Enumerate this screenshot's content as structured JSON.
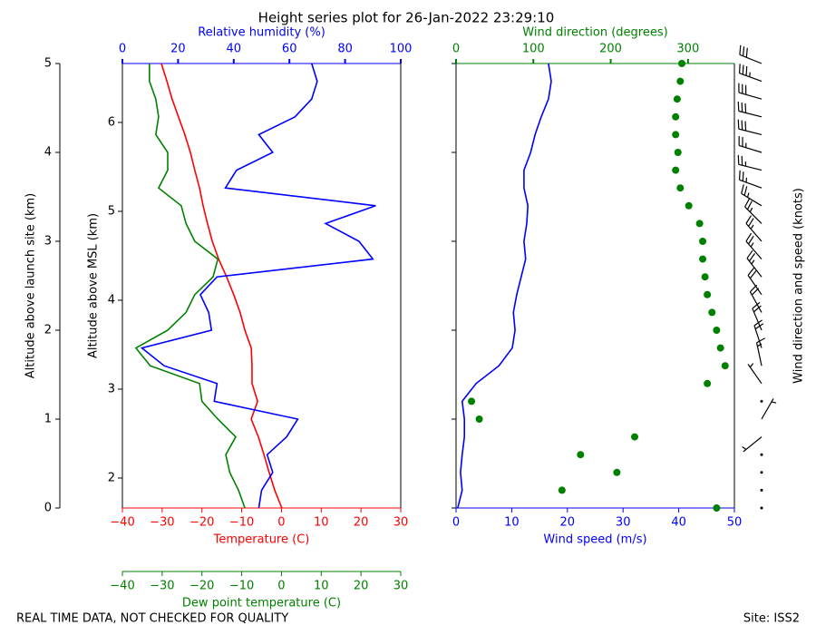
{
  "title": "Height series plot for 26-Jan-2022 23:29:10",
  "footer": "REAL TIME DATA, NOT CHECKED FOR QUALITY",
  "site": "Site: ISS2",
  "chart_data": [
    {
      "type": "line",
      "y": [
        0,
        0.2,
        0.4,
        0.6,
        0.8,
        1,
        1.2,
        1.4,
        1.6,
        1.8,
        2,
        2.2,
        2.4,
        2.6,
        2.8,
        3,
        3.2,
        3.4,
        3.6,
        3.8,
        4,
        4.2,
        4.4,
        4.6,
        4.8,
        5
      ],
      "ylabel": "Altitude above launch site (km)",
      "ylim": [
        0,
        5
      ],
      "yticks": [
        0,
        1,
        2,
        3,
        4,
        5
      ],
      "y2label": "Altitude above MSL (km)",
      "y2lim": [
        1.663,
        6.663
      ],
      "y2ticks": [
        2,
        3,
        4,
        5,
        6
      ],
      "axes": {
        "temperature": {
          "label": "Temperature (C)",
          "color": "#ff0000",
          "lim": [
            -40,
            30
          ],
          "ticks": [
            {
              "value": -40,
              "label": "−40"
            },
            {
              "value": -30,
              "label": "−30"
            },
            {
              "value": -20,
              "label": "−20"
            },
            {
              "value": -10,
              "label": "−10"
            },
            0,
            10,
            20,
            30
          ]
        },
        "dewpoint": {
          "label": "Dew point temperature (C)",
          "color": "#008000",
          "lim": [
            -40,
            30
          ],
          "ticks": [
            {
              "value": -40,
              "label": "−40"
            },
            {
              "value": -30,
              "label": "−30"
            },
            {
              "value": -20,
              "label": "−20"
            },
            {
              "value": -10,
              "label": "−10"
            },
            0,
            10,
            20,
            30
          ]
        },
        "rh": {
          "label": "Relative humidity (%)",
          "color": "#0000ff",
          "lim": [
            0,
            100
          ],
          "ticks": [
            0,
            20,
            40,
            60,
            80,
            100
          ]
        }
      },
      "series": [
        {
          "axis": "temperature",
          "color": "#ff0000",
          "values": [
            0.1,
            -1.7,
            -3.1,
            -4.4,
            -5.8,
            -7.6,
            -6,
            -7.4,
            -7.4,
            -7.6,
            -9.2,
            -10.4,
            -12,
            -13.8,
            -15.8,
            -17.4,
            -18.6,
            -19.7,
            -20.6,
            -21.8,
            -22.9,
            -24.3,
            -25.9,
            -27.5,
            -28.8,
            -30.2
          ]
        },
        {
          "axis": "dewpoint",
          "color": "#008000",
          "values": [
            -9.2,
            -10.8,
            -13,
            -14,
            -11.5,
            -16,
            -20,
            -20.6,
            -33,
            -36.6,
            -28.6,
            -24,
            -21.8,
            -17.2,
            -16,
            -21.8,
            -24,
            -25.2,
            -30.9,
            -28.6,
            -28.6,
            -31.6,
            -30.9,
            -31.6,
            -33.2,
            -33.2
          ]
        },
        {
          "axis": "rh",
          "color": "#0000ff",
          "values": [
            49,
            50,
            54,
            52,
            59,
            63,
            33,
            34,
            15,
            7,
            32,
            31,
            28,
            34,
            90,
            85,
            73,
            91,
            37,
            41,
            54,
            49,
            62,
            68,
            70,
            68
          ]
        }
      ]
    },
    {
      "type": "line",
      "y": [
        0,
        0.2,
        0.4,
        0.6,
        0.8,
        1,
        1.2,
        1.4,
        1.6,
        1.8,
        2,
        2.2,
        2.4,
        2.6,
        2.8,
        3,
        3.2,
        3.4,
        3.6,
        3.8,
        4,
        4.2,
        4.4,
        4.6,
        4.8,
        5
      ],
      "ylim": [
        0,
        5
      ],
      "yticks": [
        0,
        1,
        2,
        3,
        4,
        5
      ],
      "y3label": "Wind direction and speed (knots)",
      "axes": {
        "speed": {
          "label": "Wind speed (m/s)",
          "color": "#0000ff",
          "lim": [
            0,
            50
          ],
          "ticks": [
            0,
            10,
            20,
            30,
            40,
            50
          ]
        },
        "direction": {
          "label": "Wind direction (degrees)",
          "color": "#008000",
          "lim": [
            0,
            360
          ],
          "ticks": [
            0,
            100,
            200,
            300
          ]
        }
      },
      "series": [
        {
          "axis": "speed",
          "style": "line",
          "color": "#0000ff",
          "values": [
            0.3,
            1.1,
            0.8,
            1.1,
            1.5,
            1.5,
            1.1,
            3.6,
            7.7,
            10.1,
            10.6,
            10.3,
            10.9,
            11.7,
            12.5,
            12.2,
            12.7,
            12.9,
            12.2,
            12.2,
            13.4,
            14.2,
            15.3,
            16.6,
            17.1,
            16.6
          ]
        },
        {
          "axis": "direction",
          "style": "dots",
          "color": "#008000",
          "values": [
            337,
            137,
            208,
            161,
            231,
            30,
            20,
            325,
            348,
            342,
            337,
            331,
            325,
            322,
            319,
            319,
            315,
            301,
            290,
            284,
            287,
            284,
            284,
            286,
            290,
            292
          ]
        }
      ]
    }
  ]
}
